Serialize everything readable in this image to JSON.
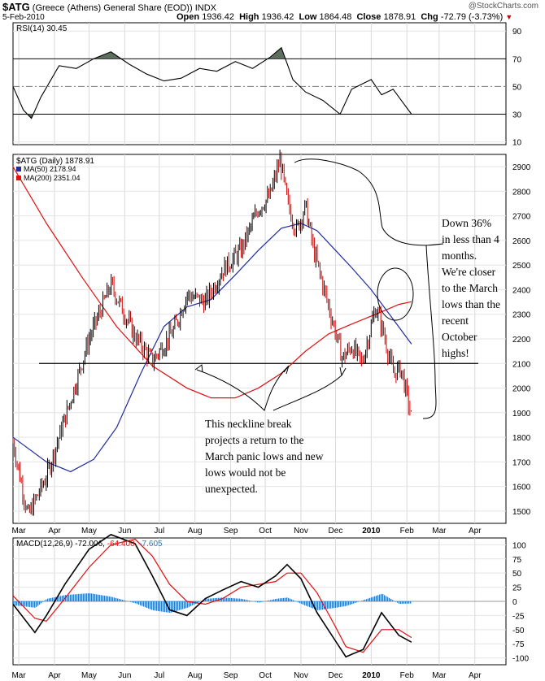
{
  "header": {
    "symbol": "$ATG",
    "name": "(Greece (Athens) General Share (EOD))",
    "exchange": "INDX",
    "watermark": "@StockCharts.com",
    "date": "5-Feb-2010",
    "open_label": "Open",
    "open": "1936.42",
    "high_label": "High",
    "high": "1936.42",
    "low_label": "Low",
    "low": "1864.48",
    "close_label": "Close",
    "close": "1878.91",
    "chg_label": "Chg",
    "chg": "-72.79 (-3.73%)"
  },
  "rsi_panel": {
    "legend": "RSI(14) 30.45",
    "ticks": [
      "90",
      "70",
      "50",
      "30",
      "10"
    ]
  },
  "price_panel": {
    "legend_price": "$ATG (Daily) 1878.91",
    "legend_ma50": "MA(50) 2178.94",
    "legend_ma200": "MA(200) 2351.04",
    "ticks": [
      "2900",
      "2800",
      "2700",
      "2600",
      "2500",
      "2400",
      "2300",
      "2200",
      "2100",
      "2000",
      "1900",
      "1800",
      "1700",
      "1600",
      "1500"
    ]
  },
  "macd_panel": {
    "legend_prefix": "MACD(12,26,9)",
    "legend_macd": "-72.006,",
    "legend_signal": "-64.400,",
    "legend_hist": "-7.605",
    "ticks": [
      "100",
      "75",
      "50",
      "25",
      "0",
      "-25",
      "-50",
      "-75",
      "-100"
    ]
  },
  "x_axis_labels": [
    "Mar",
    "Apr",
    "May",
    "Jun",
    "Jul",
    "Aug",
    "Sep",
    "Oct",
    "Nov",
    "Dec",
    "2010",
    "Feb",
    "Mar",
    "Apr"
  ],
  "annotations": {
    "neckline_note": "This neckline break\nprojects a return to the\nMarch panic lows and new\nlows would not be\nunexpected.",
    "down_note": "Down 36%\nin less than 4\nmonths.\nWe're closer\nto the March\nlows than the\nrecent\nOctober\nhighs!"
  },
  "colors": {
    "price_up": "#000000",
    "price_down": "#cc0000",
    "ma50": "#1f2b9e",
    "ma200": "#e01010",
    "macd_line": "#000000",
    "signal_line": "#e01010",
    "histogram": "#2b79c2",
    "rsi_fill": "#5e6e5e",
    "chg_arrow": "#cc0000"
  },
  "chart_data": {
    "type": "line",
    "price_series": {
      "name": "$ATG (Daily)",
      "x": [
        "2009-02-24",
        "2009-03-09",
        "2009-03-25",
        "2009-04-15",
        "2009-05-01",
        "2009-05-20",
        "2009-06-10",
        "2009-06-25",
        "2009-07-13",
        "2009-07-25",
        "2009-08-10",
        "2009-08-25",
        "2009-09-10",
        "2009-09-25",
        "2009-10-05",
        "2009-10-14",
        "2009-10-20",
        "2009-10-28",
        "2009-11-05",
        "2009-11-12",
        "2009-11-20",
        "2009-11-28",
        "2009-12-07",
        "2009-12-15",
        "2009-12-24",
        "2010-01-05",
        "2010-01-12",
        "2010-01-20",
        "2010-01-27",
        "2010-02-05"
      ],
      "y": [
        1780,
        1480,
        1640,
        1950,
        2200,
        2420,
        2210,
        2110,
        2230,
        2380,
        2350,
        2480,
        2560,
        2730,
        2780,
        2930,
        2760,
        2640,
        2740,
        2560,
        2420,
        2280,
        2120,
        2170,
        2100,
        2330,
        2220,
        2060,
        2080,
        1879
      ]
    },
    "ma50": {
      "name": "MA(50)",
      "x": [
        "2009-02-24",
        "2009-03-25",
        "2009-04-15",
        "2009-05-05",
        "2009-05-25",
        "2009-06-15",
        "2009-07-05",
        "2009-07-25",
        "2009-08-15",
        "2009-09-05",
        "2009-09-25",
        "2009-10-15",
        "2009-11-01",
        "2009-11-15",
        "2009-12-01",
        "2009-12-15",
        "2010-01-01",
        "2010-01-20",
        "2010-02-05"
      ],
      "y": [
        1800,
        1700,
        1660,
        1710,
        1840,
        2060,
        2250,
        2330,
        2360,
        2460,
        2560,
        2650,
        2670,
        2640,
        2560,
        2490,
        2400,
        2280,
        2179
      ]
    },
    "ma200": {
      "name": "MA(200)",
      "x": [
        "2009-02-24",
        "2009-03-25",
        "2009-04-25",
        "2009-05-25",
        "2009-06-25",
        "2009-07-25",
        "2009-08-15",
        "2009-09-05",
        "2009-09-25",
        "2009-10-15",
        "2009-11-05",
        "2009-11-25",
        "2009-12-15",
        "2010-01-05",
        "2010-01-25",
        "2010-02-05"
      ],
      "y": [
        2900,
        2670,
        2450,
        2250,
        2090,
        2000,
        1960,
        1960,
        2000,
        2060,
        2150,
        2220,
        2260,
        2300,
        2340,
        2351
      ]
    },
    "neckline": {
      "y": 2100
    },
    "rsi": {
      "name": "RSI(14)",
      "x": [
        "2009-02-24",
        "2009-03-05",
        "2009-03-12",
        "2009-03-20",
        "2009-04-05",
        "2009-04-20",
        "2009-05-05",
        "2009-05-20",
        "2009-06-05",
        "2009-06-20",
        "2009-07-05",
        "2009-07-20",
        "2009-08-05",
        "2009-08-20",
        "2009-09-05",
        "2009-09-20",
        "2009-10-05",
        "2009-10-15",
        "2009-10-25",
        "2009-11-05",
        "2009-11-20",
        "2009-12-05",
        "2009-12-15",
        "2010-01-01",
        "2010-01-10",
        "2010-01-20",
        "2010-02-05"
      ],
      "y": [
        50,
        33,
        27,
        42,
        65,
        63,
        70,
        75,
        66,
        59,
        54,
        56,
        63,
        61,
        68,
        63,
        71,
        78,
        55,
        46,
        40,
        30,
        48,
        55,
        44,
        48,
        30
      ],
      "ylim": [
        0,
        100
      ]
    },
    "macd": {
      "name": "MACD(12,26,9)",
      "x": [
        "2009-02-24",
        "2009-03-15",
        "2009-03-25",
        "2009-04-10",
        "2009-05-01",
        "2009-05-20",
        "2009-06-10",
        "2009-06-25",
        "2009-07-10",
        "2009-07-25",
        "2009-08-10",
        "2009-08-25",
        "2009-09-10",
        "2009-09-25",
        "2009-10-10",
        "2009-10-20",
        "2009-11-01",
        "2009-11-15",
        "2009-12-01",
        "2009-12-10",
        "2009-12-25",
        "2010-01-10",
        "2010-01-25",
        "2010-02-05"
      ],
      "y": [
        -5,
        -55,
        -25,
        30,
        92,
        118,
        102,
        45,
        -15,
        -25,
        5,
        20,
        35,
        25,
        45,
        65,
        40,
        -20,
        -70,
        -98,
        -85,
        -20,
        -60,
        -72
      ],
      "ylim": [
        -100,
        100
      ]
    },
    "signal": {
      "name": "Signal",
      "x": [
        "2009-02-24",
        "2009-03-15",
        "2009-03-25",
        "2009-04-10",
        "2009-05-01",
        "2009-05-20",
        "2009-06-10",
        "2009-06-25",
        "2009-07-10",
        "2009-07-25",
        "2009-08-10",
        "2009-08-25",
        "2009-09-10",
        "2009-09-25",
        "2009-10-10",
        "2009-10-20",
        "2009-11-01",
        "2009-11-15",
        "2009-12-01",
        "2009-12-10",
        "2009-12-25",
        "2010-01-10",
        "2010-01-25",
        "2010-02-05"
      ],
      "y": [
        10,
        -30,
        -35,
        5,
        60,
        100,
        110,
        80,
        30,
        0,
        -5,
        5,
        25,
        30,
        35,
        50,
        50,
        15,
        -45,
        -80,
        -90,
        -50,
        -50,
        -64
      ]
    },
    "ylim": [
      1450,
      2950
    ]
  }
}
